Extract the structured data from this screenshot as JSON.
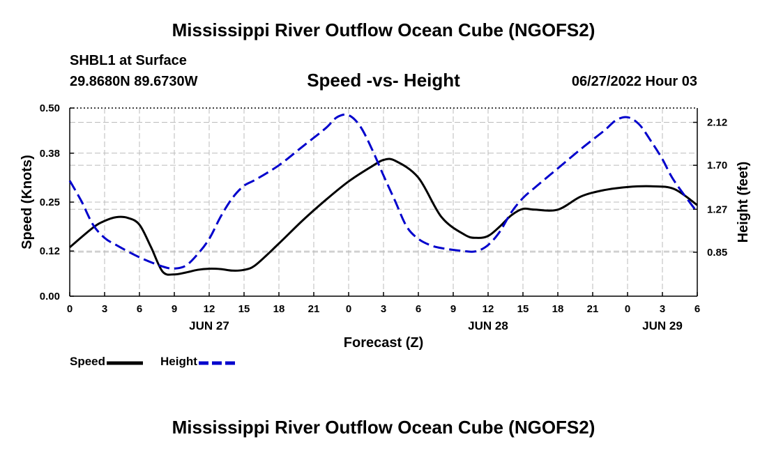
{
  "chart_data": {
    "type": "line",
    "title": "Mississippi River Outflow Ocean Cube (NGOFS2)",
    "station": "SHBL1 at Surface",
    "location": "29.8680N  89.6730W",
    "subtitle": "Speed -vs- Height",
    "datetime": "06/27/2022 Hour 03",
    "xlabel": "Forecast (Z)",
    "ylabel_left": "Speed (Knots)",
    "ylabel_right": "Height (feet)",
    "x_range": [
      0,
      54
    ],
    "x_ticks": [
      {
        "x": 0,
        "label": "0"
      },
      {
        "x": 3,
        "label": "3"
      },
      {
        "x": 6,
        "label": "6"
      },
      {
        "x": 9,
        "label": "9"
      },
      {
        "x": 12,
        "label": "12"
      },
      {
        "x": 15,
        "label": "15"
      },
      {
        "x": 18,
        "label": "18"
      },
      {
        "x": 21,
        "label": "21"
      },
      {
        "x": 24,
        "label": "0"
      },
      {
        "x": 27,
        "label": "3"
      },
      {
        "x": 30,
        "label": "6"
      },
      {
        "x": 33,
        "label": "9"
      },
      {
        "x": 36,
        "label": "12"
      },
      {
        "x": 39,
        "label": "15"
      },
      {
        "x": 42,
        "label": "18"
      },
      {
        "x": 45,
        "label": "21"
      },
      {
        "x": 48,
        "label": "0"
      },
      {
        "x": 51,
        "label": "3"
      },
      {
        "x": 54,
        "label": "6"
      }
    ],
    "date_labels": [
      {
        "x": 12,
        "label": "JUN 27"
      },
      {
        "x": 36,
        "label": "JUN 28"
      },
      {
        "x": 51,
        "label": "JUN 29"
      }
    ],
    "y_left": {
      "min": 0,
      "max": 0.5,
      "ticks": [
        "0.00",
        "0.12",
        "0.25",
        "0.38",
        "0.50"
      ]
    },
    "y_right": {
      "min": 0.42,
      "max": 2.26,
      "ticks": [
        "0.85",
        "1.27",
        "1.70",
        "2.12"
      ]
    },
    "grid": true,
    "series": [
      {
        "name": "Speed",
        "axis": "left",
        "color": "#000000",
        "dash": "solid",
        "x": [
          0,
          2,
          3,
          4,
          5,
          6,
          7,
          8,
          9,
          10,
          11,
          12,
          13,
          14,
          15,
          16,
          18,
          20,
          22,
          24,
          26,
          27,
          28,
          30,
          32,
          34,
          35,
          36,
          37,
          38,
          39,
          40,
          42,
          44,
          46,
          48,
          50,
          52,
          54
        ],
        "values": [
          0.13,
          0.182,
          0.2,
          0.21,
          0.208,
          0.19,
          0.13,
          0.065,
          0.058,
          0.063,
          0.07,
          0.073,
          0.072,
          0.068,
          0.07,
          0.083,
          0.14,
          0.2,
          0.255,
          0.305,
          0.345,
          0.362,
          0.36,
          0.315,
          0.21,
          0.163,
          0.155,
          0.16,
          0.185,
          0.215,
          0.232,
          0.23,
          0.23,
          0.265,
          0.282,
          0.29,
          0.292,
          0.285,
          0.242
        ]
      },
      {
        "name": "Height",
        "axis": "right",
        "color": "#0000cc",
        "dash": "dashed",
        "x": [
          0,
          1,
          2,
          3,
          4,
          6,
          8,
          9,
          10,
          11,
          12,
          13,
          14,
          15,
          16,
          18,
          20,
          22,
          23,
          24,
          25,
          26,
          27,
          28,
          29,
          30,
          31,
          32,
          34,
          35,
          36,
          37,
          38,
          39,
          40,
          42,
          44,
          46,
          47,
          48,
          49,
          50,
          51,
          52,
          54
        ],
        "values": [
          1.55,
          1.35,
          1.12,
          0.99,
          0.92,
          0.8,
          0.71,
          0.69,
          0.72,
          0.83,
          0.98,
          1.2,
          1.38,
          1.5,
          1.56,
          1.7,
          1.88,
          2.06,
          2.17,
          2.19,
          2.08,
          1.86,
          1.6,
          1.35,
          1.1,
          0.98,
          0.92,
          0.89,
          0.86,
          0.86,
          0.92,
          1.05,
          1.24,
          1.38,
          1.48,
          1.67,
          1.86,
          2.04,
          2.14,
          2.17,
          2.1,
          1.94,
          1.76,
          1.55,
          1.24
        ]
      }
    ],
    "legend": [
      {
        "name": "Speed",
        "color": "#000000"
      },
      {
        "name": "Height",
        "color": "#0000cc"
      }
    ]
  }
}
